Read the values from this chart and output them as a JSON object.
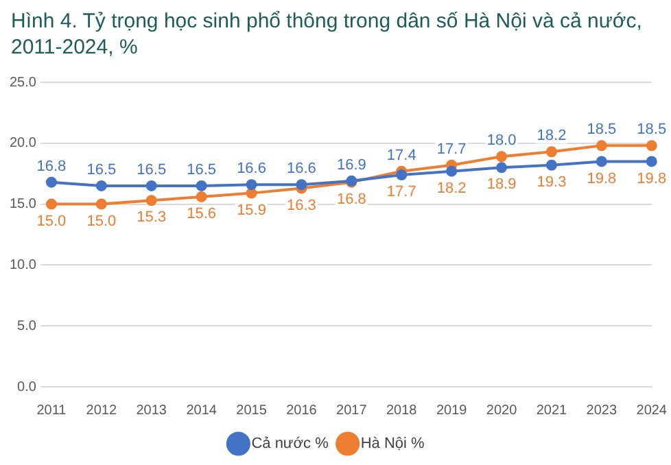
{
  "chart_data": {
    "type": "line",
    "title": "Hình 4. Tỷ trọng học sinh phổ thông trong dân số Hà Nội và cả nước, 2011-2024, %",
    "categories": [
      "2011",
      "2012",
      "2013",
      "2014",
      "2015",
      "2016",
      "2017",
      "2018",
      "2019",
      "2020",
      "2021",
      "2023",
      "2024"
    ],
    "series": [
      {
        "name": "Cả nước %",
        "color": "#4472c4",
        "values": [
          16.8,
          16.5,
          16.5,
          16.5,
          16.6,
          16.6,
          16.9,
          17.4,
          17.7,
          18.0,
          18.2,
          18.5,
          18.5
        ],
        "value_labels": [
          "16.8",
          "16.5",
          "16.5",
          "16.5",
          "16.6",
          "16.6",
          "16.9",
          "17.4",
          "17.7",
          "18.0",
          "18.2",
          "18.5",
          "18.5"
        ]
      },
      {
        "name": "Hà Nội %",
        "color": "#ed7d31",
        "values": [
          15.0,
          15.0,
          15.3,
          15.6,
          15.9,
          16.3,
          16.8,
          17.7,
          18.2,
          18.9,
          19.3,
          19.8,
          19.8
        ],
        "value_labels": [
          "15.0",
          "15.0",
          "15.3",
          "15.6",
          "15.9",
          "16.3",
          "16.8",
          "17.7",
          "18.2",
          "18.9",
          "19.3",
          "19.8",
          "19.8"
        ]
      }
    ],
    "ylim": [
      0,
      25
    ],
    "yticks": [
      {
        "value": 0,
        "label": "0.0"
      },
      {
        "value": 5,
        "label": "5.0"
      },
      {
        "value": 10,
        "label": "10.0"
      },
      {
        "value": 15,
        "label": "15.0"
      },
      {
        "value": 20,
        "label": "20.0"
      },
      {
        "value": 25,
        "label": "25.0"
      }
    ],
    "grid": "y",
    "legend": "bottom",
    "marker": "circle",
    "line_style": "solid"
  }
}
